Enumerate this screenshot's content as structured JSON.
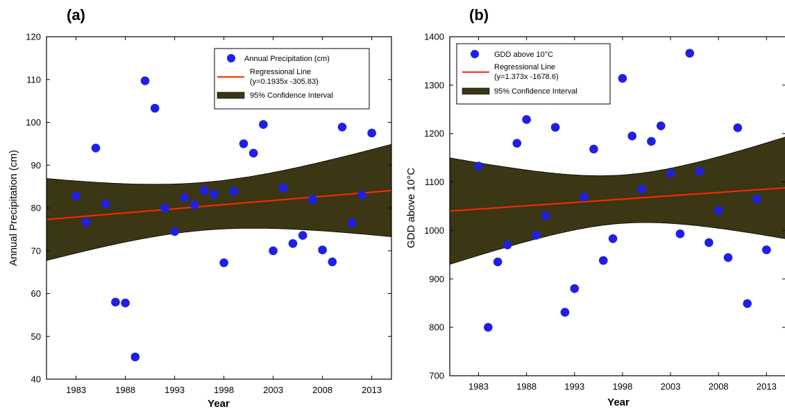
{
  "chart_data": [
    {
      "type": "scatter",
      "panel_label": "(a)",
      "xlabel": "Year",
      "ylabel": "Annual Precipitation (cm)",
      "xlim": [
        1980,
        2015
      ],
      "ylim": [
        40,
        120
      ],
      "xticks": [
        1983,
        1988,
        1993,
        1998,
        2003,
        2008,
        2013
      ],
      "yticks": [
        40,
        50,
        60,
        70,
        80,
        90,
        100,
        110,
        120
      ],
      "grid": false,
      "legend_position": "top-right",
      "legend": {
        "points": "Annual Precipitation (cm)",
        "line": "Regressional Line",
        "line_eq": "(y=0.1935x -305.83)",
        "band": "95% Confidence Interval"
      },
      "regression": {
        "slope": 0.1935,
        "intercept": -305.83
      },
      "ci_halfwidth": {
        "center_year": 1996,
        "min": 5.6,
        "at_edges": 10.8
      },
      "colors": {
        "points": "#1f1fe6",
        "line": "#ff2a00",
        "band": "#3b3714"
      },
      "points": [
        {
          "x": 1983,
          "y": 82.8
        },
        {
          "x": 1984,
          "y": 76.7
        },
        {
          "x": 1985,
          "y": 94.0
        },
        {
          "x": 1986,
          "y": 80.9
        },
        {
          "x": 1987,
          "y": 58.0
        },
        {
          "x": 1988,
          "y": 57.8
        },
        {
          "x": 1989,
          "y": 45.2
        },
        {
          "x": 1990,
          "y": 109.7
        },
        {
          "x": 1991,
          "y": 103.3
        },
        {
          "x": 1992,
          "y": 80.0
        },
        {
          "x": 1993,
          "y": 74.5
        },
        {
          "x": 1994,
          "y": 82.4
        },
        {
          "x": 1995,
          "y": 80.7
        },
        {
          "x": 1996,
          "y": 84.1
        },
        {
          "x": 1997,
          "y": 83.2
        },
        {
          "x": 1998,
          "y": 67.2
        },
        {
          "x": 1999,
          "y": 83.9
        },
        {
          "x": 2000,
          "y": 95.0
        },
        {
          "x": 2001,
          "y": 92.8
        },
        {
          "x": 2002,
          "y": 99.5
        },
        {
          "x": 2003,
          "y": 70.0
        },
        {
          "x": 2004,
          "y": 84.7
        },
        {
          "x": 2005,
          "y": 71.7
        },
        {
          "x": 2006,
          "y": 73.6
        },
        {
          "x": 2007,
          "y": 82.0
        },
        {
          "x": 2008,
          "y": 70.2
        },
        {
          "x": 2009,
          "y": 67.4
        },
        {
          "x": 2010,
          "y": 98.9
        },
        {
          "x": 2011,
          "y": 76.5
        },
        {
          "x": 2012,
          "y": 83.0
        },
        {
          "x": 2013,
          "y": 97.5
        }
      ]
    },
    {
      "type": "scatter",
      "panel_label": "(b)",
      "xlabel": "Year",
      "ylabel": "GDD above 10°C",
      "xlim": [
        1980,
        2015
      ],
      "ylim": [
        700,
        1400
      ],
      "xticks": [
        1983,
        1988,
        1993,
        1998,
        2003,
        2008,
        2013
      ],
      "yticks": [
        700,
        800,
        900,
        1000,
        1100,
        1200,
        1300,
        1400
      ],
      "grid": false,
      "legend_position": "top-left",
      "legend": {
        "points": "GDD above 10°C",
        "line": "Regressional Line",
        "line_eq": "(y=1.373x -1678.6)",
        "band": "95% Confidence Interval"
      },
      "regression": {
        "slope": 1.373,
        "intercept": -1678.6
      },
      "ci_halfwidth": {
        "center_year": 1998,
        "min": 50,
        "at_edges": 110
      },
      "colors": {
        "points": "#1f1fe6",
        "line": "#ff2a00",
        "band": "#3b3714"
      },
      "points": [
        {
          "x": 1983,
          "y": 1133
        },
        {
          "x": 1984,
          "y": 800
        },
        {
          "x": 1985,
          "y": 935
        },
        {
          "x": 1986,
          "y": 970
        },
        {
          "x": 1987,
          "y": 1180
        },
        {
          "x": 1988,
          "y": 1229
        },
        {
          "x": 1989,
          "y": 990
        },
        {
          "x": 1990,
          "y": 1031
        },
        {
          "x": 1991,
          "y": 1213
        },
        {
          "x": 1992,
          "y": 831
        },
        {
          "x": 1993,
          "y": 880
        },
        {
          "x": 1994,
          "y": 1069
        },
        {
          "x": 1995,
          "y": 1168
        },
        {
          "x": 1996,
          "y": 938
        },
        {
          "x": 1997,
          "y": 983
        },
        {
          "x": 1998,
          "y": 1314
        },
        {
          "x": 1999,
          "y": 1195
        },
        {
          "x": 2000,
          "y": 1085
        },
        {
          "x": 2001,
          "y": 1184
        },
        {
          "x": 2002,
          "y": 1216
        },
        {
          "x": 2003,
          "y": 1118
        },
        {
          "x": 2004,
          "y": 993
        },
        {
          "x": 2005,
          "y": 1366
        },
        {
          "x": 2006,
          "y": 1122
        },
        {
          "x": 2007,
          "y": 975
        },
        {
          "x": 2008,
          "y": 1041
        },
        {
          "x": 2009,
          "y": 944
        },
        {
          "x": 2010,
          "y": 1212
        },
        {
          "x": 2011,
          "y": 849
        },
        {
          "x": 2012,
          "y": 1065
        },
        {
          "x": 2013,
          "y": 960
        }
      ]
    }
  ]
}
